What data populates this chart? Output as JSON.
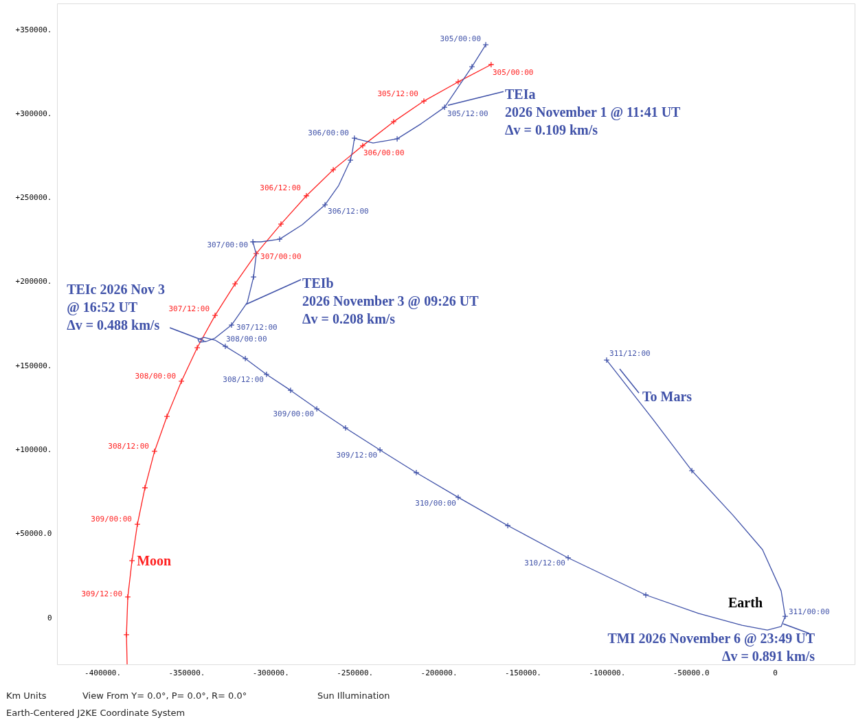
{
  "chart_data": {
    "type": "line",
    "xlim": [
      -427000,
      47400
    ],
    "ylim": [
      -27800,
      365600
    ],
    "xticks": [
      {
        "value": -400000,
        "label": "-400000."
      },
      {
        "value": -350000,
        "label": "-350000."
      },
      {
        "value": -300000,
        "label": "-300000."
      },
      {
        "value": -250000,
        "label": "-250000."
      },
      {
        "value": -200000,
        "label": "-200000."
      },
      {
        "value": -150000,
        "label": "-150000."
      },
      {
        "value": -100000,
        "label": "-100000."
      },
      {
        "value": -50000,
        "label": "-50000.0"
      },
      0
    ],
    "yticks": [
      0,
      {
        "value": 50000,
        "label": "+50000.0"
      },
      {
        "value": 100000,
        "label": "+100000."
      },
      {
        "value": 150000,
        "label": "+150000."
      },
      {
        "value": 200000,
        "label": "+200000."
      },
      {
        "value": 250000,
        "label": "+250000."
      },
      {
        "value": 300000,
        "label": "+300000."
      },
      {
        "value": 350000,
        "label": "+350000."
      }
    ],
    "grid": false,
    "series": [
      {
        "type": "line",
        "color": "#ff2020",
        "x": [
          -168800,
          -188400,
          -208800,
          -226800,
          -245200,
          -262700,
          -278700,
          -293800,
          -308500,
          -321100,
          -333000,
          -343600,
          -353000,
          -361600,
          -369000,
          -374700,
          -379200,
          -382400,
          -384900,
          -385700,
          -385300
        ],
        "values": [
          329200,
          318900,
          307500,
          295200,
          280900,
          266600,
          251100,
          234300,
          216700,
          198700,
          179900,
          160700,
          140700,
          119800,
          99000,
          77300,
          55600,
          33900,
          12300,
          -10200,
          -27800
        ]
      },
      {
        "type": "scatter",
        "marker": "cross",
        "color": "#ff2020",
        "x": [
          -168800,
          -188400,
          -208800,
          -226800,
          -245200,
          -262700,
          -278700,
          -293800,
          -308500,
          -321100,
          -333000,
          -343600,
          -353000,
          -361600,
          -369000,
          -374700,
          -379200,
          -382400,
          -384900,
          -385700
        ],
        "values": [
          329200,
          318900,
          307500,
          295200,
          280900,
          266600,
          251100,
          234300,
          216700,
          198700,
          179900,
          160700,
          140700,
          119800,
          99000,
          77300,
          55600,
          33900,
          12300,
          -10200
        ],
        "value_labels": [
          "305/00:00",
          null,
          "305/12:00",
          null,
          "306/00:00",
          null,
          "306/12:00",
          null,
          "307/00:00",
          null,
          "307/12:00",
          null,
          "308/00:00",
          null,
          "308/12:00",
          null,
          "309/00:00",
          null,
          "309/12:00",
          null
        ]
      },
      {
        "type": "line",
        "color": "#3f51a8",
        "x": [
          -172000,
          -180200,
          -196500,
          -210400,
          -224700,
          -239000,
          -247200,
          -250100,
          -251300,
          -252500,
          -259500,
          -267600,
          -281100,
          -294600,
          -305600,
          -310500,
          -308500,
          -310100,
          -313800,
          -323200,
          -333000,
          -338300,
          -342400,
          -343200,
          -339500,
          -333000,
          -326900,
          -315000,
          -302400,
          -288100,
          -272500,
          -255400,
          -234900,
          -213300,
          -188400,
          -158900,
          -123000,
          -76800,
          -45400,
          -19600,
          -4500,
          3700,
          6100,
          3700,
          -7400,
          -24900,
          -49400,
          -72700,
          -100100
        ],
        "values": [
          341000,
          327900,
          303800,
          294000,
          285000,
          282500,
          284600,
          285400,
          277600,
          272300,
          257200,
          245700,
          233900,
          225300,
          223700,
          223700,
          216300,
          202800,
          187700,
          174200,
          166400,
          164400,
          164000,
          165600,
          166800,
          165200,
          161500,
          154200,
          144800,
          135300,
          124300,
          112900,
          99800,
          86300,
          71600,
          54800,
          35600,
          13500,
          2500,
          -4500,
          -7400,
          -5300,
          800,
          15900,
          40500,
          60900,
          87500,
          118200,
          153300
        ]
      },
      {
        "type": "scatter",
        "marker": "cross",
        "color": "#3f51a8",
        "x": [
          -172000,
          -180200,
          -196500,
          -224700,
          -250100,
          -252500,
          -267600,
          -294600,
          -310500,
          -310100,
          -323200,
          -326900,
          -315000,
          -302400,
          -288100,
          -272500,
          -255400,
          -234900,
          -213300,
          -188400,
          -158900,
          -123000,
          -76800,
          6100,
          -49400,
          -100100
        ],
        "values": [
          341000,
          327900,
          303800,
          285000,
          285400,
          272300,
          245700,
          225300,
          223700,
          202800,
          174200,
          161500,
          154200,
          144800,
          135300,
          124300,
          112900,
          99800,
          86300,
          71600,
          54800,
          35600,
          13500,
          800,
          87500,
          153300
        ],
        "value_labels": [
          "305/00:00",
          null,
          "305/12:00",
          null,
          "306/00:00",
          null,
          "306/12:00",
          null,
          "307/00:00",
          null,
          "307/12:00",
          "308/00:00",
          null,
          "308/12:00",
          null,
          "309/00:00",
          null,
          "309/12:00",
          null,
          "310/00:00",
          null,
          "310/12:00",
          null,
          "311/00:00",
          null,
          "311/12:00"
        ]
      }
    ],
    "annotations": [
      {
        "text": "TEIa\n2026 November 1 @ 11:41 UT\nΔv = 0.109 km/s",
        "x": -194500,
        "y": 305000
      },
      {
        "text": "TEIb\n2026 November 3 @ 09:26 UT\nΔv = 0.208 km/s",
        "x": -314600,
        "y": 186500
      },
      {
        "text": "TEIc 2026 Nov 3\n@ 16:52 UT\nΔv = 0.488 km/s",
        "x": -339500,
        "y": 164800
      },
      {
        "text": "TMI 2026 November 6 @ 23:49 UT\nΔv = 0.891 km/s",
        "x": 4900,
        "y": -3700
      },
      "Earth",
      "To Mars",
      {
        "text": "Moon",
        "x": -382400,
        "y": 33900
      },
      "Km Units",
      "View From Y=  0.0°, P=  0.0°, R=  0.0°",
      "Sun Illumination",
      "Earth-Centered J2KE Coordinate System"
    ]
  }
}
